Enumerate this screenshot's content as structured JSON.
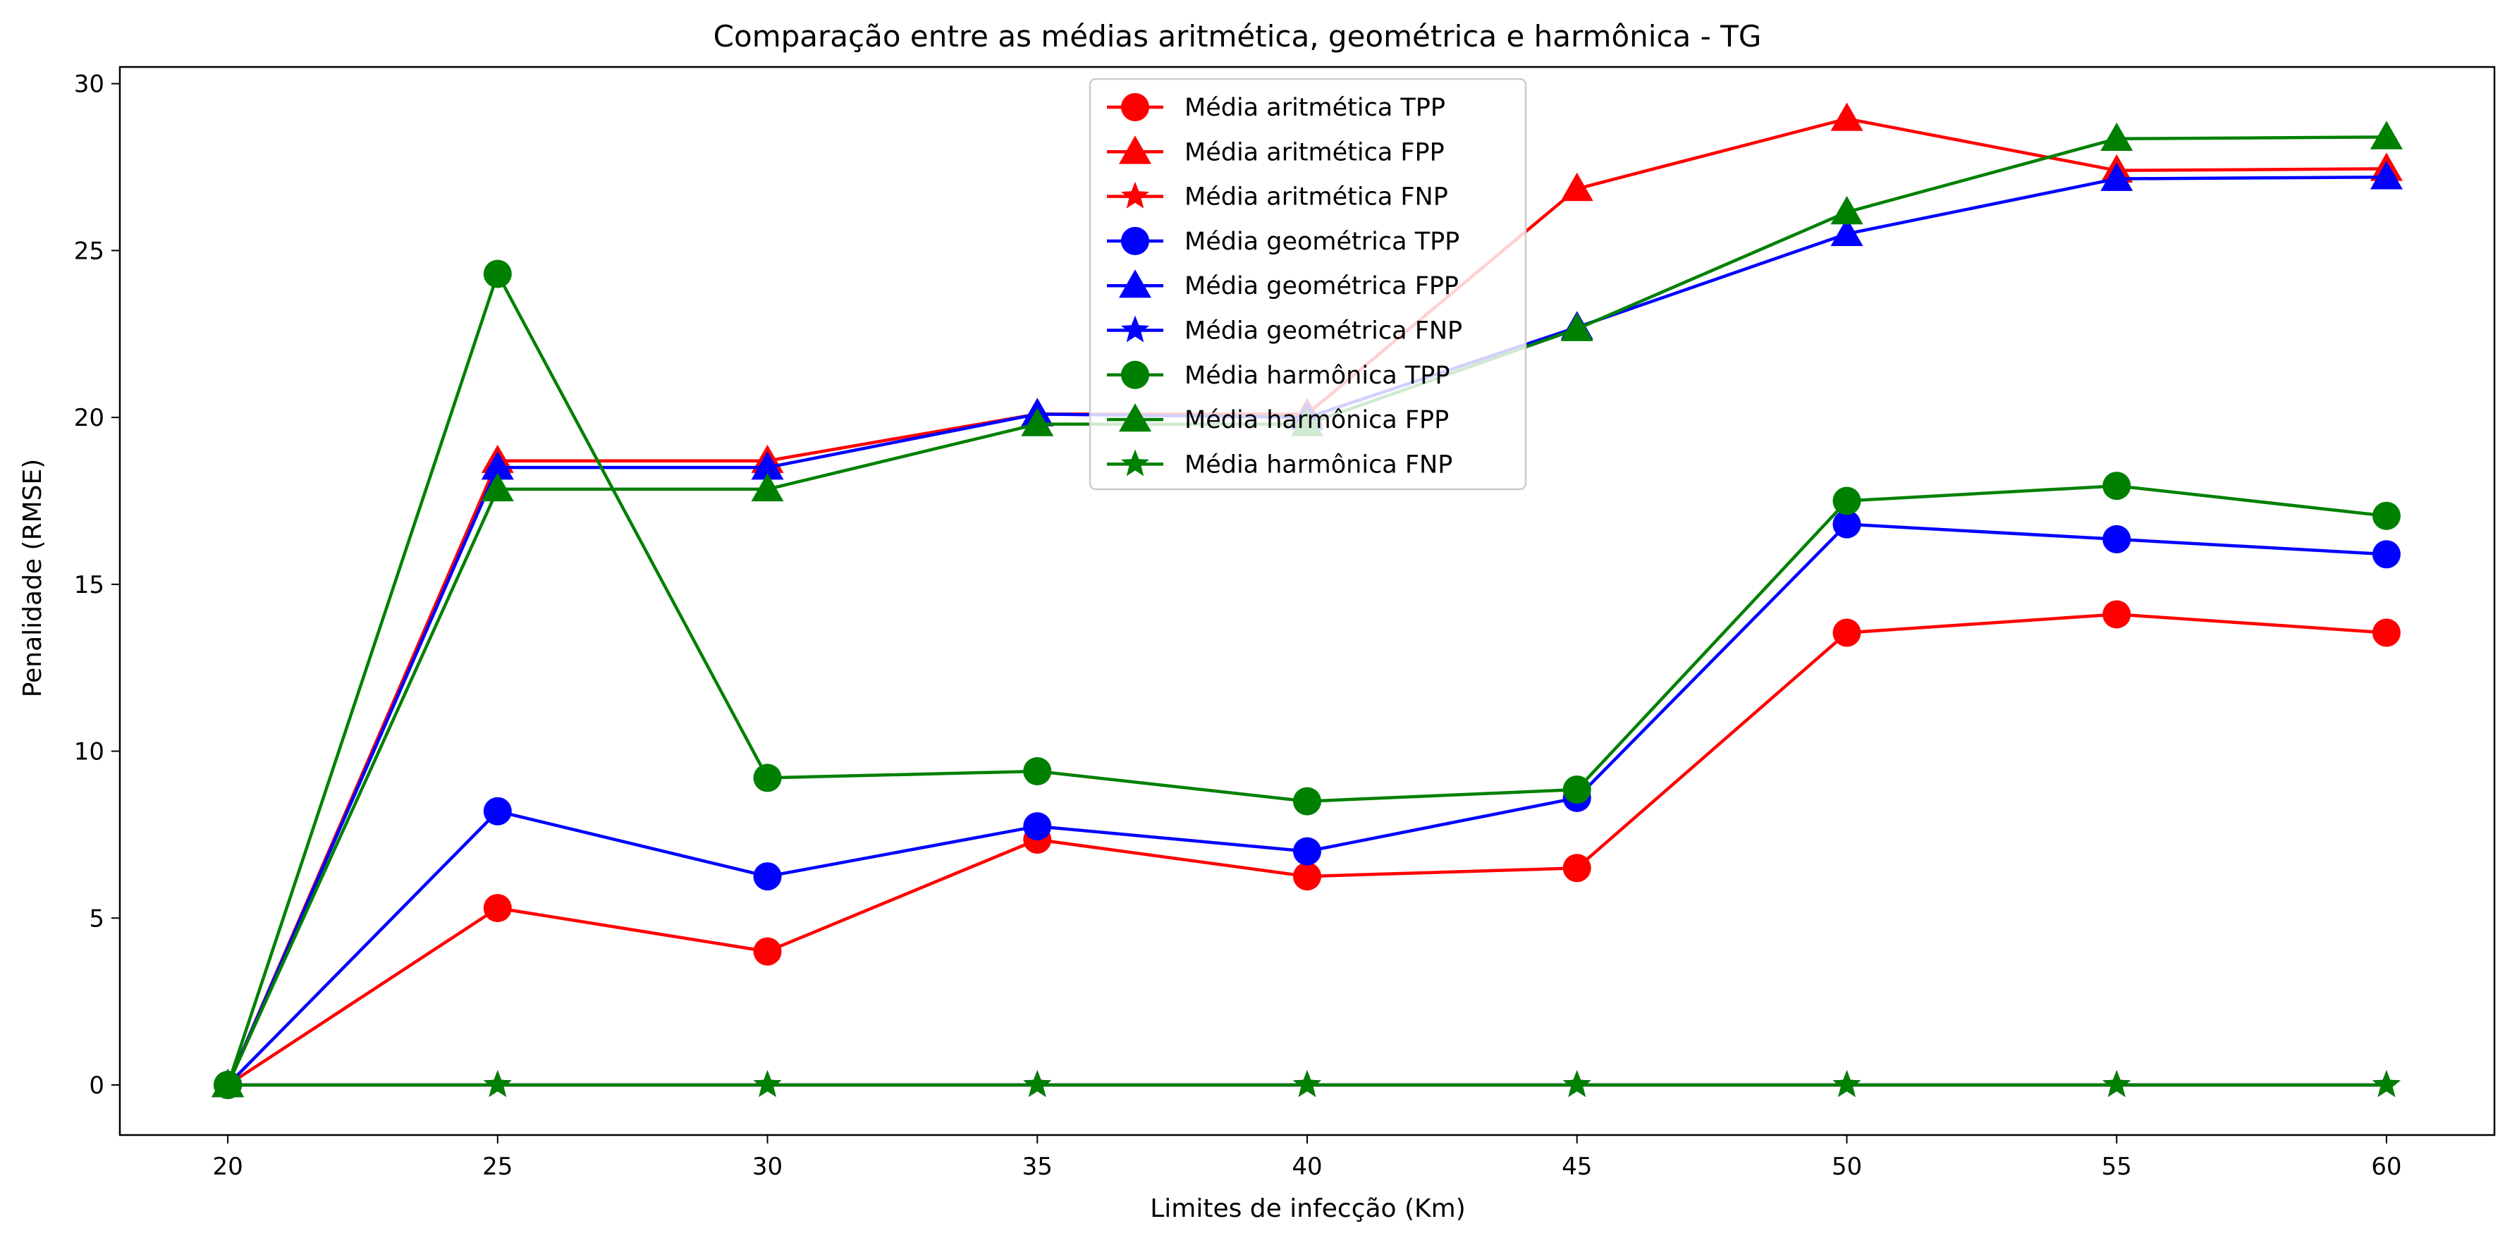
{
  "chart_data": {
    "type": "line",
    "title": "Comparação entre as médias aritmética, geométrica e harmônica - TG",
    "xlabel": "Limites de infecção (Km)",
    "ylabel": "Penalidade (RMSE)",
    "x": [
      20,
      25,
      30,
      35,
      40,
      45,
      50,
      55,
      60
    ],
    "xlim": [
      18,
      62
    ],
    "ylim": [
      -1.5,
      30.5
    ],
    "xticks": [
      20,
      25,
      30,
      35,
      40,
      45,
      50,
      55,
      60
    ],
    "yticks": [
      0,
      5,
      10,
      15,
      20,
      25,
      30
    ],
    "grid": false,
    "legend_position": "upper center",
    "series": [
      {
        "name": "Média aritmética TPP",
        "color": "#ff0000",
        "marker": "circle",
        "values": [
          0,
          5.3,
          4.0,
          7.35,
          6.25,
          6.5,
          13.55,
          14.1,
          13.55
        ]
      },
      {
        "name": "Média aritmética FPP",
        "color": "#ff0000",
        "marker": "triangle",
        "values": [
          0,
          18.7,
          18.7,
          20.1,
          20.1,
          26.85,
          28.95,
          27.4,
          27.45
        ]
      },
      {
        "name": "Média aritmética FNP",
        "color": "#ff0000",
        "marker": "star",
        "values": [
          0,
          0,
          0,
          0,
          0,
          0,
          0,
          0,
          0
        ]
      },
      {
        "name": "Média geométrica TPP",
        "color": "#0000ff",
        "marker": "circle",
        "values": [
          0,
          8.2,
          6.25,
          7.75,
          7.0,
          8.6,
          16.8,
          16.35,
          15.9
        ]
      },
      {
        "name": "Média geométrica FPP",
        "color": "#0000ff",
        "marker": "triangle",
        "values": [
          0,
          18.5,
          18.5,
          20.1,
          20.0,
          22.7,
          25.5,
          27.15,
          27.2
        ]
      },
      {
        "name": "Média geométrica FNP",
        "color": "#0000ff",
        "marker": "star",
        "values": [
          0,
          0,
          0,
          0,
          0,
          0,
          0,
          0,
          0
        ]
      },
      {
        "name": "Média harmônica TPP",
        "color": "#008000",
        "marker": "circle",
        "values": [
          0,
          24.3,
          9.2,
          9.4,
          8.5,
          8.85,
          17.5,
          17.95,
          17.05
        ]
      },
      {
        "name": "Média harmônica FPP",
        "color": "#008000",
        "marker": "triangle",
        "values": [
          0,
          17.85,
          17.85,
          19.8,
          19.8,
          22.65,
          26.15,
          28.35,
          28.4
        ]
      },
      {
        "name": "Média harmônica FNP",
        "color": "#008000",
        "marker": "star",
        "values": [
          0,
          0,
          0,
          0,
          0,
          0,
          0,
          0,
          0
        ]
      }
    ]
  }
}
